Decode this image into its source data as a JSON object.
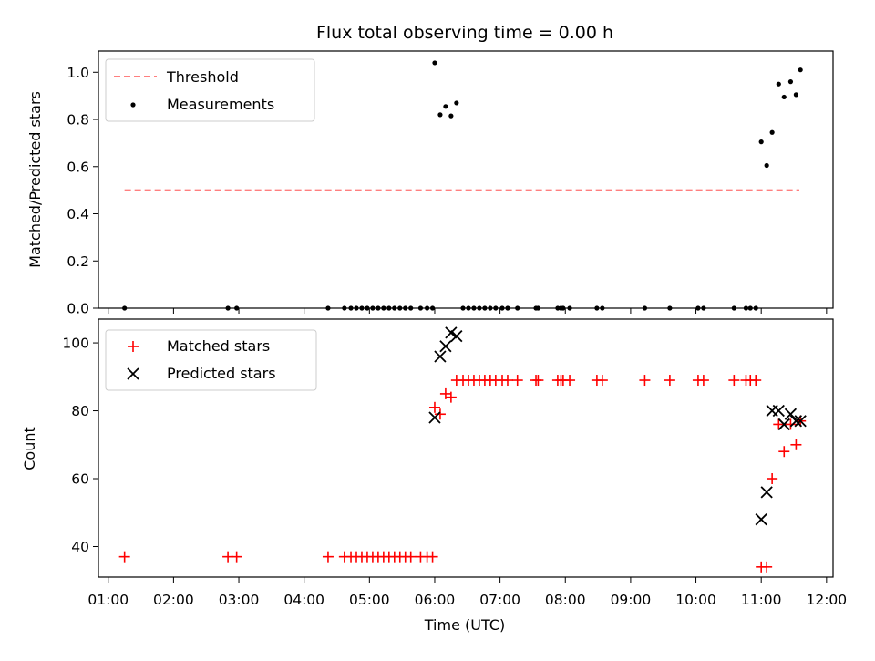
{
  "title": "Flux total observing time = 0.00 h",
  "colors": {
    "threshold": "#ff7f7f",
    "measurements": "#000000",
    "matched": "#ff0000",
    "predicted": "#000000"
  },
  "chart_data": [
    {
      "type": "scatter",
      "title": "Flux total observing time = 0.00 h",
      "ylabel": "Matched/Predicted stars",
      "xlabel": "",
      "xlim": [
        "00:51",
        "12:06"
      ],
      "ylim": [
        0,
        1.09
      ],
      "yticks": [
        0.0,
        0.2,
        0.4,
        0.6,
        0.8,
        1.0
      ],
      "ytick_labels": [
        "0.0",
        "0.2",
        "0.4",
        "0.6",
        "0.8",
        "1.0"
      ],
      "grid": false,
      "legend_position": "top-left",
      "legend": [
        "Threshold",
        "Measurements"
      ],
      "series": [
        {
          "name": "Threshold",
          "kind": "dashed-line",
          "x": [
            "01:15",
            "11:35"
          ],
          "y": [
            0.5,
            0.5
          ]
        },
        {
          "name": "Measurements",
          "kind": "points",
          "x": [
            "01:15",
            "02:50",
            "02:58",
            "04:22",
            "04:37",
            "04:43",
            "04:48",
            "04:53",
            "04:58",
            "05:03",
            "05:08",
            "05:13",
            "05:18",
            "05:23",
            "05:28",
            "05:33",
            "05:38",
            "05:47",
            "05:53",
            "05:58",
            "06:00",
            "06:05",
            "06:10",
            "06:15",
            "06:20",
            "06:26",
            "06:31",
            "06:36",
            "06:41",
            "06:46",
            "06:51",
            "06:56",
            "07:02",
            "07:07",
            "07:16",
            "07:33",
            "07:35",
            "07:53",
            "07:56",
            "07:58",
            "08:04",
            "08:29",
            "08:34",
            "09:13",
            "09:36",
            "10:02",
            "10:07",
            "10:35",
            "10:46",
            "10:50",
            "10:55",
            "11:00",
            "11:05",
            "11:10",
            "11:16",
            "11:21",
            "11:27",
            "11:32",
            "11:36"
          ],
          "y": [
            0,
            0,
            0,
            0,
            0,
            0,
            0,
            0,
            0,
            0,
            0,
            0,
            0,
            0,
            0,
            0,
            0,
            0,
            0,
            0,
            1.04,
            0.82,
            0.855,
            0.815,
            0.87,
            0,
            0,
            0,
            0,
            0,
            0,
            0,
            0,
            0,
            0,
            0,
            0,
            0,
            0,
            0,
            0,
            0,
            0,
            0,
            0,
            0,
            0,
            0,
            0,
            0,
            0,
            0.705,
            0.605,
            0.745,
            0.95,
            0.895,
            0.96,
            0.905,
            1.01
          ]
        }
      ]
    },
    {
      "type": "scatter",
      "title": "",
      "ylabel": "Count",
      "xlabel": "Time (UTC)",
      "xlim": [
        "00:51",
        "12:06"
      ],
      "ylim": [
        31,
        107
      ],
      "yticks": [
        40,
        60,
        80,
        100
      ],
      "ytick_labels": [
        "40",
        "60",
        "80",
        "100"
      ],
      "xtick_labels": [
        "01:00",
        "02:00",
        "03:00",
        "04:00",
        "05:00",
        "06:00",
        "07:00",
        "08:00",
        "09:00",
        "10:00",
        "11:00",
        "12:00"
      ],
      "grid": false,
      "legend_position": "top-left",
      "legend": [
        "Matched stars",
        "Predicted stars"
      ],
      "series": [
        {
          "name": "Matched stars",
          "marker": "plus",
          "x": [
            "01:15",
            "02:50",
            "02:58",
            "04:22",
            "04:37",
            "04:43",
            "04:48",
            "04:53",
            "04:58",
            "05:03",
            "05:08",
            "05:13",
            "05:18",
            "05:23",
            "05:28",
            "05:33",
            "05:38",
            "05:47",
            "05:53",
            "05:58",
            "06:00",
            "06:05",
            "06:10",
            "06:15",
            "06:20",
            "06:26",
            "06:31",
            "06:36",
            "06:41",
            "06:46",
            "06:51",
            "06:56",
            "07:02",
            "07:07",
            "07:16",
            "07:33",
            "07:35",
            "07:53",
            "07:56",
            "07:58",
            "08:04",
            "08:29",
            "08:34",
            "09:13",
            "09:36",
            "10:02",
            "10:07",
            "10:35",
            "10:46",
            "10:50",
            "10:55",
            "11:00",
            "11:05",
            "11:10",
            "11:16",
            "11:21",
            "11:27",
            "11:32",
            "11:36"
          ],
          "y": [
            37,
            37,
            37,
            37,
            37,
            37,
            37,
            37,
            37,
            37,
            37,
            37,
            37,
            37,
            37,
            37,
            37,
            37,
            37,
            37,
            81,
            79,
            85,
            84,
            89,
            89,
            89,
            89,
            89,
            89,
            89,
            89,
            89,
            89,
            89,
            89,
            89,
            89,
            89,
            89,
            89,
            89,
            89,
            89,
            89,
            89,
            89,
            89,
            89,
            89,
            89,
            34,
            34,
            60,
            76,
            68,
            76,
            70,
            77
          ]
        },
        {
          "name": "Predicted stars",
          "marker": "x",
          "x": [
            "06:00",
            "06:05",
            "06:10",
            "06:15",
            "06:20",
            "11:00",
            "11:05",
            "11:10",
            "11:16",
            "11:21",
            "11:27",
            "11:32",
            "11:36"
          ],
          "y": [
            78,
            96,
            99,
            103,
            102,
            48,
            56,
            80,
            80,
            76,
            79,
            77,
            77
          ]
        }
      ]
    }
  ]
}
